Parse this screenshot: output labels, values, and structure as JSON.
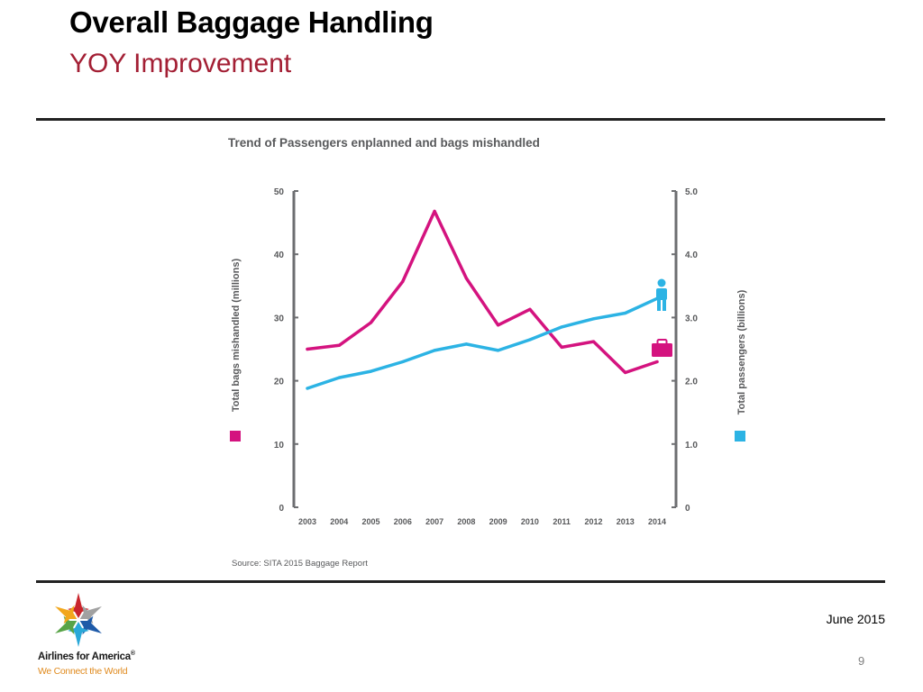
{
  "slide": {
    "title": "Overall Baggage Handling",
    "subtitle": "YOY Improvement",
    "date": "June 2015",
    "page_number": "9"
  },
  "logo": {
    "name": "Airlines for America",
    "registered": "®",
    "tagline": "We Connect the World"
  },
  "colors": {
    "title": "#000000",
    "subtitle": "#a31f34",
    "bags_series": "#d4137f",
    "passengers_series": "#2cb3e4",
    "axis": "#6d6e71",
    "chart_text": "#58595b"
  },
  "chart_data": {
    "type": "line",
    "title": "Trend of Passengers enplanned and bags mishandled",
    "source": "Source: SITA 2015 Baggage Report",
    "categories": [
      "2003",
      "2004",
      "2005",
      "2006",
      "2007",
      "2008",
      "2009",
      "2010",
      "2011",
      "2012",
      "2013",
      "2014"
    ],
    "left_axis": {
      "label": "Total bags mishandled (millions)",
      "ylim": [
        0,
        50
      ],
      "ticks": [
        "0",
        "10",
        "20",
        "30",
        "40",
        "50"
      ]
    },
    "right_axis": {
      "label": "Total passengers (billions)",
      "ylim": [
        0,
        5
      ],
      "ticks": [
        "0",
        "1.0",
        "2.0",
        "3.0",
        "4.0",
        "5.0"
      ]
    },
    "series": [
      {
        "name": "Total bags mishandled (millions)",
        "axis": "left",
        "color": "#d4137f",
        "values": [
          25.0,
          25.6,
          29.2,
          35.7,
          46.8,
          36.2,
          28.8,
          31.3,
          25.3,
          26.2,
          21.3,
          23.0
        ]
      },
      {
        "name": "Total passengers (billions)",
        "axis": "right",
        "color": "#2cb3e4",
        "values": [
          1.88,
          2.05,
          2.15,
          2.3,
          2.48,
          2.58,
          2.48,
          2.65,
          2.85,
          2.98,
          3.07,
          3.3
        ]
      }
    ]
  }
}
